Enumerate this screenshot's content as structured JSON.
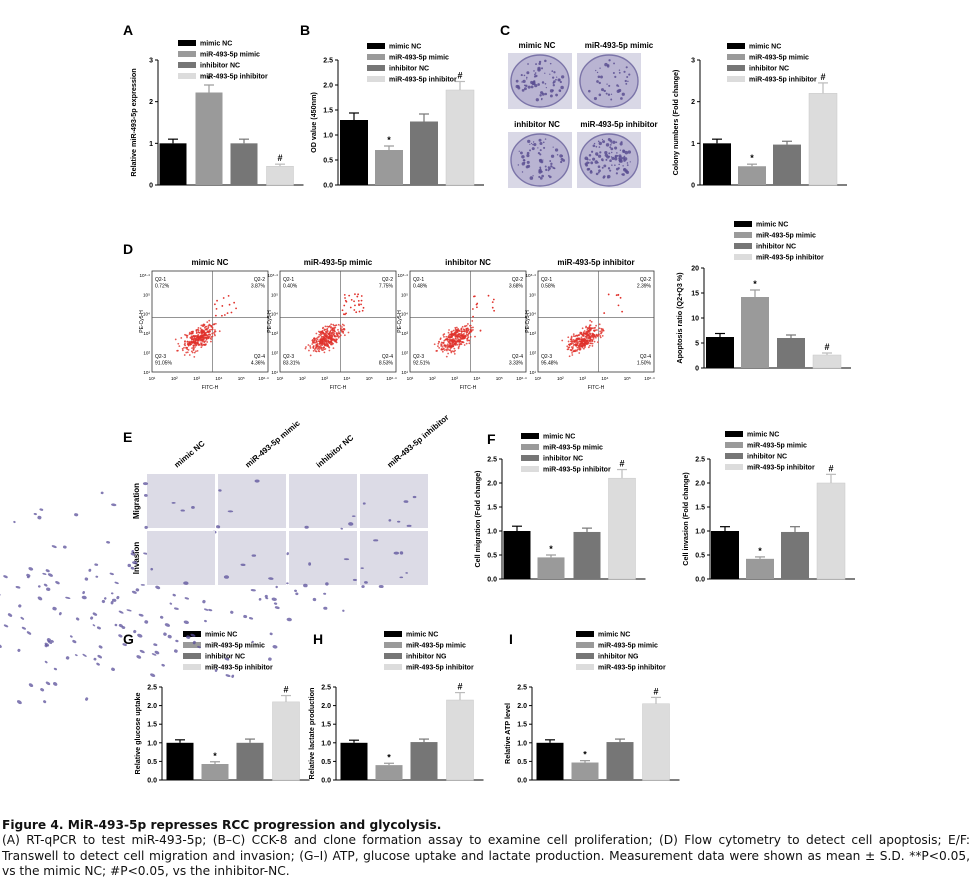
{
  "legend_labels": [
    "mimic NC",
    "miR-493-5p mimic",
    "inhibitor NC",
    "miR-493-5p inhibitor"
  ],
  "legend_labels_ng": [
    "mimic NC",
    "miR-493-5p mimic",
    "inhibitor NG",
    "miR-493-5p inhibitor"
  ],
  "colors": {
    "mimic_nc": "#000000",
    "mimic": "#9a9a9a",
    "inhibitor_nc": "#767676",
    "inhibitor": "#dcdcdc"
  },
  "chart_data": [
    {
      "panel": "A",
      "type": "bar",
      "ylabel": "Relative miR-493-5p expression",
      "ylim": [
        0,
        3
      ],
      "yticks": [
        "0",
        "1",
        "2",
        "3"
      ],
      "categories": [
        "mimic NC",
        "miR-493-5p mimic",
        "inhibitor NC",
        "miR-493-5p inhibitor"
      ],
      "values": [
        1.0,
        2.22,
        1.0,
        0.45
      ],
      "errors": [
        0.1,
        0.18,
        0.1,
        0.05
      ],
      "marks": [
        "",
        "*",
        "",
        "#"
      ]
    },
    {
      "panel": "B",
      "type": "bar",
      "ylabel": "OD value (450nm)",
      "ylim": [
        0,
        2.5
      ],
      "yticks": [
        "0.0",
        "0.5",
        "1.0",
        "1.5",
        "2.0",
        "2.5"
      ],
      "categories": [
        "mimic NC",
        "miR-493-5p mimic",
        "inhibitor NC",
        "miR-493-5p inhibitor"
      ],
      "values": [
        1.3,
        0.7,
        1.27,
        1.9
      ],
      "errors": [
        0.14,
        0.08,
        0.15,
        0.17
      ],
      "marks": [
        "",
        "*",
        "",
        "#"
      ]
    },
    {
      "panel": "C",
      "type": "bar",
      "ylabel": "Colony numbers (Fold change)",
      "ylim": [
        0,
        3
      ],
      "yticks": [
        "0",
        "1",
        "2",
        "3"
      ],
      "categories": [
        "mimic NC",
        "miR-493-5p mimic",
        "inhibitor NC",
        "miR-493-5p inhibitor"
      ],
      "values": [
        1.0,
        0.45,
        0.97,
        2.2
      ],
      "errors": [
        0.1,
        0.05,
        0.08,
        0.25
      ],
      "marks": [
        "",
        "*",
        "",
        "#"
      ]
    },
    {
      "panel": "D",
      "type": "bar",
      "ylabel": "Apoptosis ratio (Q2+Q3 %)",
      "ylim": [
        0,
        20
      ],
      "yticks": [
        "0",
        "5",
        "10",
        "15",
        "20"
      ],
      "categories": [
        "mimic NC",
        "miR-493-5p mimic",
        "inhibitor NC",
        "miR-493-5p inhibitor"
      ],
      "values": [
        6.2,
        14.2,
        6.0,
        2.6
      ],
      "errors": [
        0.7,
        1.4,
        0.6,
        0.4
      ],
      "marks": [
        "",
        "*",
        "",
        "#"
      ]
    },
    {
      "panel": "F-migration",
      "type": "bar",
      "ylabel": "Cell migration (Fold change)",
      "ylim": [
        0,
        2.5
      ],
      "yticks": [
        "0.0",
        "0.5",
        "1.0",
        "1.5",
        "2.0",
        "2.5"
      ],
      "categories": [
        "mimic NC",
        "miR-493-5p mimic",
        "inhibitor NC",
        "miR-493-5p inhibitor"
      ],
      "values": [
        1.0,
        0.45,
        0.98,
        2.1
      ],
      "errors": [
        0.1,
        0.05,
        0.08,
        0.18
      ],
      "marks": [
        "",
        "*",
        "",
        "#"
      ]
    },
    {
      "panel": "F-invasion",
      "type": "bar",
      "ylabel": "Cell invasion (Fold change)",
      "ylim": [
        0,
        2.5
      ],
      "yticks": [
        "0.0",
        "0.5",
        "1.0",
        "1.5",
        "2.0",
        "2.5"
      ],
      "categories": [
        "mimic NC",
        "miR-493-5p mimic",
        "inhibitor NC",
        "miR-493-5p inhibitor"
      ],
      "values": [
        1.0,
        0.42,
        0.98,
        2.0
      ],
      "errors": [
        0.09,
        0.04,
        0.11,
        0.18
      ],
      "marks": [
        "",
        "*",
        "",
        "#"
      ]
    },
    {
      "panel": "G",
      "type": "bar",
      "ylabel": "Relative glucose uptake",
      "ylim": [
        0,
        2.5
      ],
      "yticks": [
        "0.0",
        "0.5",
        "1.0",
        "1.5",
        "2.0",
        "2.5"
      ],
      "categories": [
        "mimic NC",
        "miR-493-5p mimic",
        "inhibitor NC",
        "miR-493-5p inhibitor"
      ],
      "values": [
        1.0,
        0.43,
        1.0,
        2.1
      ],
      "errors": [
        0.08,
        0.06,
        0.1,
        0.17
      ],
      "marks": [
        "",
        "*",
        "",
        "#"
      ]
    },
    {
      "panel": "H",
      "type": "bar",
      "ylabel": "Relative lactate production",
      "ylim": [
        0,
        2.5
      ],
      "yticks": [
        "0.0",
        "0.5",
        "1.0",
        "1.5",
        "2.0",
        "2.5"
      ],
      "categories": [
        "mimic NC",
        "miR-493-5p mimic",
        "inhibitor NC",
        "miR-493-5p inhibitor"
      ],
      "values": [
        1.0,
        0.4,
        1.02,
        2.15
      ],
      "errors": [
        0.07,
        0.05,
        0.08,
        0.2
      ],
      "marks": [
        "",
        "*",
        "",
        "#"
      ]
    },
    {
      "panel": "I",
      "type": "bar",
      "ylabel": "Relative ATP level",
      "ylim": [
        0,
        2.5
      ],
      "yticks": [
        "0.0",
        "0.5",
        "1.0",
        "1.5",
        "2.0",
        "2.5"
      ],
      "categories": [
        "mimic NC",
        "miR-493-5p mimic",
        "inhibitor NC",
        "miR-493-5p inhibitor"
      ],
      "values": [
        1.0,
        0.47,
        1.02,
        2.05
      ],
      "errors": [
        0.08,
        0.05,
        0.08,
        0.17
      ],
      "marks": [
        "",
        "*",
        "",
        "#"
      ]
    }
  ],
  "panel_C_images": [
    "mimic NC",
    "miR-493-5p mimic",
    "inhibitor NC",
    "miR-493-5p inhibitor"
  ],
  "flow": {
    "titles": [
      "mimic NC",
      "miR-493-5p mimic",
      "inhibitor NC",
      "miR-493-5p inhibitor"
    ],
    "quadrants": [
      {
        "q1": "Q2-1\n0.72%",
        "q2": "Q2-2\n3.87%",
        "q3": "Q2-3\n91.05%",
        "q4": "Q2-4\n4.36%"
      },
      {
        "q1": "Q2-1\n0.40%",
        "q2": "Q2-2\n7.75%",
        "q3": "Q2-3\n83.31%",
        "q4": "Q2-4\n8.53%"
      },
      {
        "q1": "Q2-1\n0.48%",
        "q2": "Q2-2\n3.68%",
        "q3": "Q2-3\n92.51%",
        "q4": "Q2-4\n3.33%"
      },
      {
        "q1": "Q2-1\n0.58%",
        "q2": "Q2-2\n2.39%",
        "q3": "Q2-3\n95.48%",
        "q4": "Q2-4\n1.50%"
      }
    ],
    "xlabel": "FITC-H",
    "ylabel": "PE-Cy5-H",
    "ticks": [
      "10¹",
      "10²",
      "10³",
      "10⁴",
      "10⁵",
      "10⁶·⁴"
    ]
  },
  "transwell": {
    "columns": [
      "mimic NC",
      "miR-493-5p mimic",
      "inhibitor NC",
      "miR-493-5p inhibitor"
    ],
    "rows": [
      "Migration",
      "Invasion"
    ]
  },
  "panel_letters": [
    "A",
    "B",
    "C",
    "D",
    "E",
    "F",
    "G",
    "H",
    "I"
  ],
  "caption": {
    "title": "Figure 4. MiR-493-5p represses RCC progression and glycolysis.",
    "body": "(A) RT-qPCR to test miR-493-5p; (B–C) CCK-8 and clone formation assay to examine cell proliferation; (D) Flow cytometry to detect cell apoptosis; E/F: Transwell to detect cell migration and invasion; (G–I) ATP, glucose uptake and lactate production. Measurement data were shown as mean ± S.D. **P<0.05, vs the mimic NC; #P<0.05, vs the inhibitor-NC."
  }
}
